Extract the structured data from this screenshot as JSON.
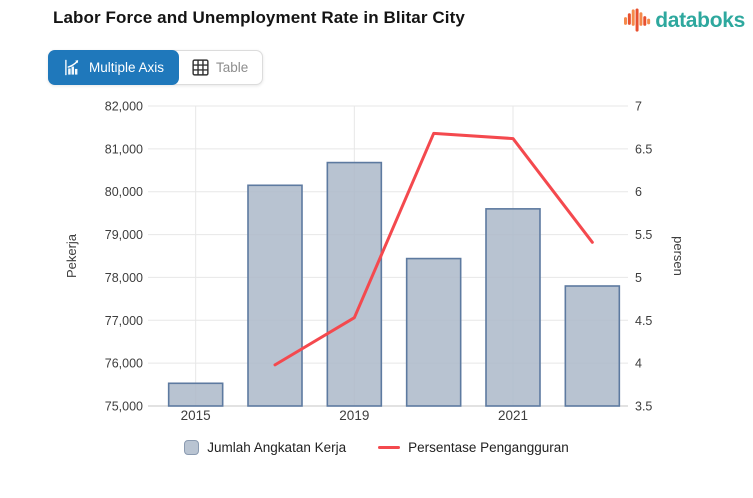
{
  "header": {
    "title": "Labor Force and Unemployment Rate in Blitar City",
    "brand": {
      "name": "databoks",
      "text_color": "#2ea89e",
      "icon_bar_colors": [
        "#f58a4b",
        "#e8502f"
      ]
    }
  },
  "tabs": {
    "active_bg": "#1f78bb",
    "items": [
      {
        "label": "Multiple Axis",
        "icon": "multiple-axis-chart-icon",
        "active": true
      },
      {
        "label": "Table",
        "icon": "table-grid-icon",
        "active": false
      }
    ]
  },
  "chart_data": {
    "type": "combo",
    "categories": [
      "2015",
      "",
      "2019",
      "",
      "2021",
      ""
    ],
    "series": [
      {
        "name": "Jumlah Angkatan Kerja",
        "type": "bar",
        "axis": "left",
        "values": [
          75530,
          80150,
          80680,
          78440,
          79600,
          77800
        ],
        "fill": "#abb8c9",
        "fill_opacity": 0.85,
        "stroke": "#5d7aa0",
        "legend_swatch_fill": "#b9c4d2"
      },
      {
        "name": "Persentase Pengangguran",
        "type": "line",
        "axis": "right",
        "values": [
          null,
          3.98,
          4.53,
          6.68,
          6.62,
          5.41
        ],
        "color": "#f4494e"
      }
    ],
    "y_left": {
      "label": "Pekerja",
      "min": 75000,
      "max": 82000,
      "step": 1000,
      "format": "thousands"
    },
    "y_right": {
      "label": "persen",
      "min": 3.5,
      "max": 7,
      "step": 0.5
    },
    "grid": true,
    "grid_color": "#e7e7e7",
    "axis_line_color": "#c6c6c6",
    "tick_color": "#3d3d3d",
    "legend_position": "bottom"
  }
}
